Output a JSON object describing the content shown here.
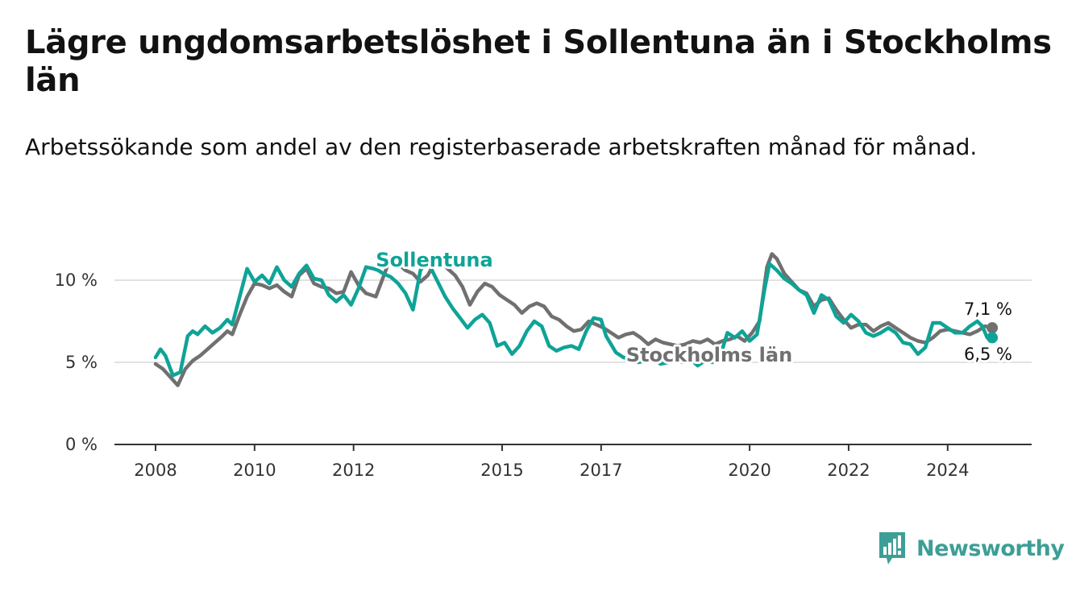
{
  "title": "Lägre ungdomsarbetslöshet i Sollentuna än i Stockholms län",
  "subtitle": "Arbetssökande som andel av den registerbaserade arbetskraften månad för månad.",
  "brand": {
    "name": "Newsworthy",
    "color": "#3d9e97",
    "icon": "bar-chart-logo-icon"
  },
  "chart_data": {
    "type": "line",
    "title": "Lägre ungdomsarbetslöshet i Sollentuna än i Stockholms län",
    "subtitle": "Arbetssökande som andel av den registerbaserade arbetskraften månad för månad.",
    "xlabel": "",
    "ylabel": "",
    "xlim": [
      2008,
      2025.8
    ],
    "ylim": [
      0,
      10.5
    ],
    "grid": true,
    "x_ticks": [
      {
        "value": 2008,
        "label": "2008"
      },
      {
        "value": 2010,
        "label": "2010"
      },
      {
        "value": 2012,
        "label": "2012"
      },
      {
        "value": 2015,
        "label": "2015"
      },
      {
        "value": 2017,
        "label": "2017"
      },
      {
        "value": 2020,
        "label": "2020"
      },
      {
        "value": 2022,
        "label": "2022"
      },
      {
        "value": 2024,
        "label": "2024"
      }
    ],
    "y_ticks": [
      {
        "value": 0,
        "label": "0 %"
      },
      {
        "value": 5,
        "label": "5 %"
      },
      {
        "value": 10,
        "label": "10 %"
      }
    ],
    "series": [
      {
        "name": "Stockholms län",
        "color": "#707070",
        "end_label": "7,1 %",
        "x": [
          2008.0,
          2008.15,
          2008.3,
          2008.45,
          2008.6,
          2008.75,
          2008.9,
          2009.05,
          2009.2,
          2009.35,
          2009.45,
          2009.55,
          2009.7,
          2009.85,
          2010.0,
          2010.15,
          2010.3,
          2010.45,
          2010.6,
          2010.75,
          2010.9,
          2011.05,
          2011.2,
          2011.35,
          2011.5,
          2011.65,
          2011.8,
          2011.95,
          2012.1,
          2012.25,
          2012.45,
          2012.6,
          2012.75,
          2012.9,
          2013.05,
          2013.2,
          2013.35,
          2013.5,
          2013.7,
          2013.9,
          2014.05,
          2014.2,
          2014.35,
          2014.5,
          2014.65,
          2014.8,
          2014.95,
          2015.1,
          2015.25,
          2015.4,
          2015.55,
          2015.7,
          2015.85,
          2016.0,
          2016.15,
          2016.3,
          2016.45,
          2016.6,
          2016.75,
          2016.9,
          2017.05,
          2017.2,
          2017.35,
          2017.5,
          2017.65,
          2017.8,
          2017.95,
          2018.1,
          2018.25,
          2018.4,
          2018.55,
          2018.7,
          2018.85,
          2019.0,
          2019.15,
          2019.3,
          2019.45,
          2019.6,
          2019.75,
          2019.9,
          2020.05,
          2020.2,
          2020.35,
          2020.45,
          2020.55,
          2020.7,
          2020.85,
          2021.0,
          2021.15,
          2021.3,
          2021.45,
          2021.6,
          2021.75,
          2021.9,
          2022.05,
          2022.2,
          2022.35,
          2022.5,
          2022.65,
          2022.8,
          2022.95,
          2023.1,
          2023.25,
          2023.4,
          2023.55,
          2023.7,
          2023.85,
          2024.0,
          2024.15,
          2024.3,
          2024.45,
          2024.6,
          2024.75,
          2024.9
        ],
        "y": [
          4.9,
          4.6,
          4.1,
          3.6,
          4.6,
          5.1,
          5.4,
          5.8,
          6.2,
          6.6,
          6.9,
          6.7,
          7.9,
          9.0,
          9.8,
          9.7,
          9.5,
          9.7,
          9.3,
          9.0,
          10.3,
          10.7,
          9.8,
          9.6,
          9.5,
          9.2,
          9.3,
          10.5,
          9.7,
          9.2,
          9.0,
          10.2,
          11.4,
          11.0,
          10.6,
          10.4,
          9.9,
          10.3,
          11.4,
          10.7,
          10.3,
          9.6,
          8.5,
          9.3,
          9.8,
          9.6,
          9.1,
          8.8,
          8.5,
          8.0,
          8.4,
          8.6,
          8.4,
          7.8,
          7.6,
          7.2,
          6.9,
          7.0,
          7.5,
          7.3,
          7.1,
          6.8,
          6.5,
          6.7,
          6.8,
          6.5,
          6.1,
          6.4,
          6.2,
          6.1,
          6.0,
          6.1,
          6.3,
          6.2,
          6.4,
          6.1,
          6.3,
          6.4,
          6.6,
          6.3,
          6.8,
          7.5,
          10.8,
          11.6,
          11.3,
          10.4,
          9.9,
          9.4,
          9.2,
          8.4,
          8.8,
          8.9,
          8.2,
          7.6,
          7.1,
          7.3,
          7.3,
          6.9,
          7.2,
          7.4,
          7.1,
          6.8,
          6.5,
          6.3,
          6.2,
          6.5,
          6.9,
          7.0,
          6.9,
          6.8,
          6.7,
          6.9,
          7.2,
          7.1
        ]
      },
      {
        "name": "Sollentuna",
        "color": "#0fa397",
        "end_label": "6,5 %",
        "x": [
          2008.0,
          2008.1,
          2008.2,
          2008.35,
          2008.5,
          2008.65,
          2008.75,
          2008.85,
          2009.0,
          2009.15,
          2009.3,
          2009.45,
          2009.55,
          2009.7,
          2009.85,
          2010.0,
          2010.15,
          2010.3,
          2010.45,
          2010.6,
          2010.75,
          2010.9,
          2011.05,
          2011.2,
          2011.35,
          2011.5,
          2011.65,
          2011.8,
          2011.95,
          2012.1,
          2012.25,
          2012.4,
          2012.5,
          2012.6,
          2012.75,
          2012.9,
          2013.05,
          2013.2,
          2013.35,
          2013.5,
          2013.6,
          2013.7,
          2013.85,
          2014.0,
          2014.15,
          2014.3,
          2014.45,
          2014.6,
          2014.75,
          2014.9,
          2015.05,
          2015.2,
          2015.35,
          2015.5,
          2015.65,
          2015.8,
          2015.95,
          2016.1,
          2016.25,
          2016.4,
          2016.55,
          2016.7,
          2016.85,
          2017.0,
          2017.1,
          2017.3,
          2017.45,
          2017.6,
          2017.75,
          2017.9,
          2018.05,
          2018.2,
          2018.35,
          2018.5,
          2018.65,
          2018.8,
          2018.95,
          2019.1,
          2019.25,
          2019.4,
          2019.55,
          2019.7,
          2019.85,
          2020.0,
          2020.15,
          2020.3,
          2020.4,
          2020.55,
          2020.7,
          2020.85,
          2021.0,
          2021.15,
          2021.3,
          2021.45,
          2021.6,
          2021.75,
          2021.9,
          2022.05,
          2022.2,
          2022.35,
          2022.5,
          2022.65,
          2022.8,
          2022.95,
          2023.1,
          2023.25,
          2023.4,
          2023.55,
          2023.7,
          2023.85,
          2024.0,
          2024.15,
          2024.3,
          2024.45,
          2024.6,
          2024.7,
          2024.8,
          2024.9
        ],
        "y": [
          5.3,
          5.8,
          5.4,
          4.2,
          4.4,
          6.6,
          6.9,
          6.7,
          7.2,
          6.8,
          7.1,
          7.6,
          7.3,
          9.0,
          10.7,
          9.9,
          10.3,
          9.8,
          10.8,
          10.0,
          9.6,
          10.4,
          10.9,
          10.1,
          10.0,
          9.1,
          8.7,
          9.1,
          8.5,
          9.5,
          10.8,
          10.7,
          10.6,
          10.4,
          10.2,
          9.8,
          9.2,
          8.2,
          10.6,
          11.2,
          10.5,
          9.9,
          9.0,
          8.3,
          7.7,
          7.1,
          7.6,
          7.9,
          7.4,
          6.0,
          6.2,
          5.5,
          6.0,
          6.9,
          7.5,
          7.2,
          6.0,
          5.7,
          5.9,
          6.0,
          5.8,
          6.9,
          7.7,
          7.6,
          6.6,
          5.6,
          5.3,
          5.2,
          5.0,
          5.1,
          5.3,
          4.9,
          5.0,
          5.2,
          5.0,
          5.2,
          4.8,
          5.1,
          5.0,
          5.3,
          6.8,
          6.5,
          6.9,
          6.3,
          6.7,
          9.4,
          11.0,
          10.6,
          10.1,
          9.8,
          9.4,
          9.1,
          8.0,
          9.1,
          8.8,
          7.8,
          7.4,
          7.9,
          7.5,
          6.8,
          6.6,
          6.8,
          7.1,
          6.8,
          6.2,
          6.1,
          5.5,
          5.9,
          7.4,
          7.4,
          7.1,
          6.8,
          6.8,
          7.2,
          7.5,
          7.2,
          6.5,
          6.5
        ]
      }
    ],
    "annotations": [
      {
        "text": "Sollentuna",
        "series": "Sollentuna"
      },
      {
        "text": "Stockholms län",
        "series": "Stockholms län"
      }
    ]
  }
}
